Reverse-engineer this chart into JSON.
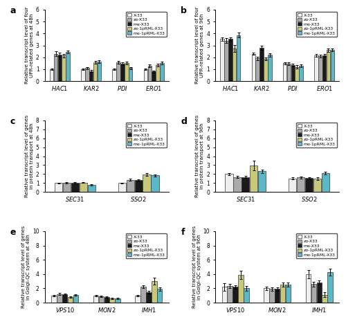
{
  "panel_a": {
    "title": "a",
    "ylabel": "Relative transcript level of four\nUPR-related genes at 48h",
    "ylim": [
      0,
      6
    ],
    "yticks": [
      0,
      1,
      2,
      3,
      4,
      5,
      6
    ],
    "groups": [
      "HAC1",
      "KAR2",
      "PDI",
      "ERO1"
    ],
    "values": [
      [
        1.0,
        2.3,
        2.2,
        2.15,
        2.45
      ],
      [
        1.0,
        1.1,
        0.85,
        1.6,
        1.65
      ],
      [
        1.0,
        1.6,
        1.45,
        1.5,
        1.1
      ],
      [
        1.0,
        1.3,
        0.8,
        1.35,
        1.5
      ]
    ],
    "errors": [
      [
        0.05,
        0.2,
        0.18,
        0.14,
        0.12
      ],
      [
        0.05,
        0.1,
        0.1,
        0.12,
        0.12
      ],
      [
        0.05,
        0.12,
        0.12,
        0.12,
        0.1
      ],
      [
        0.05,
        0.12,
        0.1,
        0.12,
        0.12
      ]
    ]
  },
  "panel_b": {
    "title": "b",
    "ylabel": "Relative transcript level of four\nUPR-related genes at 96h",
    "ylim": [
      0,
      6
    ],
    "yticks": [
      0,
      1,
      2,
      3,
      4,
      5,
      6
    ],
    "groups": [
      "HAC1",
      "KAR2",
      "PDI",
      "ERO1"
    ],
    "values": [
      [
        3.55,
        3.4,
        3.55,
        2.75,
        3.85
      ],
      [
        2.3,
        1.9,
        2.8,
        1.85,
        2.2
      ],
      [
        1.5,
        1.45,
        1.35,
        1.2,
        1.3
      ],
      [
        2.15,
        2.1,
        2.15,
        2.6,
        2.65
      ]
    ],
    "errors": [
      [
        0.15,
        0.2,
        0.15,
        0.3,
        0.2
      ],
      [
        0.1,
        0.15,
        0.18,
        0.12,
        0.15
      ],
      [
        0.1,
        0.12,
        0.1,
        0.12,
        0.1
      ],
      [
        0.1,
        0.12,
        0.12,
        0.15,
        0.12
      ]
    ]
  },
  "panel_c": {
    "title": "c",
    "ylabel": "Relative transcript level of genes\nin protein transport at 48h",
    "ylim": [
      0,
      8
    ],
    "yticks": [
      0,
      1,
      2,
      3,
      4,
      5,
      6,
      7,
      8
    ],
    "groups": [
      "SEC31",
      "SSO2"
    ],
    "values": [
      [
        1.0,
        1.05,
        1.02,
        1.05,
        0.75
      ],
      [
        1.0,
        1.35,
        1.3,
        1.95,
        1.85
      ]
    ],
    "errors": [
      [
        0.05,
        0.08,
        0.06,
        0.07,
        0.08
      ],
      [
        0.05,
        0.1,
        0.1,
        0.12,
        0.1
      ]
    ]
  },
  "panel_d": {
    "title": "d",
    "ylabel": "Relative transcript level of genes\nin protein transport at 96h",
    "ylim": [
      0,
      8
    ],
    "yticks": [
      0,
      1,
      2,
      3,
      4,
      5,
      6,
      7,
      8
    ],
    "groups": [
      "SEC31",
      "SSO2"
    ],
    "values": [
      [
        2.0,
        1.65,
        1.65,
        2.95,
        2.3
      ],
      [
        1.5,
        1.6,
        1.55,
        1.5,
        2.1
      ]
    ],
    "errors": [
      [
        0.12,
        0.12,
        0.12,
        0.55,
        0.2
      ],
      [
        0.1,
        0.12,
        0.12,
        0.15,
        0.15
      ]
    ]
  },
  "panel_e": {
    "title": "e",
    "ylabel": "Relative transcript level of genes\nin Golgi-QC system at 48h",
    "ylim": [
      0,
      10
    ],
    "yticks": [
      0,
      2,
      4,
      6,
      8,
      10
    ],
    "groups": [
      "VPS10",
      "MON2",
      "IMH1"
    ],
    "values": [
      [
        1.0,
        1.2,
        1.15,
        0.8,
        1.05
      ],
      [
        1.0,
        0.85,
        0.75,
        0.6,
        0.55
      ],
      [
        1.0,
        2.2,
        1.5,
        3.0,
        1.9
      ]
    ],
    "errors": [
      [
        0.08,
        0.12,
        0.12,
        0.1,
        0.1
      ],
      [
        0.08,
        0.1,
        0.1,
        0.1,
        0.1
      ],
      [
        0.1,
        0.2,
        0.2,
        0.5,
        0.25
      ]
    ]
  },
  "panel_f": {
    "title": "f",
    "ylabel": "Relative transcript level of genes\nin Golgi-QC system at 96h",
    "ylim": [
      0,
      10
    ],
    "yticks": [
      0,
      2,
      4,
      6,
      8,
      10
    ],
    "groups": [
      "VPS10",
      "MON2",
      "IMH1"
    ],
    "values": [
      [
        2.2,
        2.35,
        2.2,
        3.9,
        2.0
      ],
      [
        2.0,
        1.9,
        1.9,
        2.5,
        2.5
      ],
      [
        4.0,
        2.6,
        2.85,
        1.1,
        4.3
      ]
    ],
    "errors": [
      [
        0.5,
        0.3,
        0.25,
        0.6,
        0.3
      ],
      [
        0.25,
        0.2,
        0.2,
        0.3,
        0.3
      ],
      [
        0.6,
        0.35,
        0.3,
        0.35,
        0.5
      ]
    ]
  },
  "bar_colors": [
    "#eeeeee",
    "#aaaaaa",
    "#1a1a1a",
    "#c8c87a",
    "#5bb8c8"
  ],
  "legend_labels": [
    "X-33",
    "zα-X33",
    "mα-X33",
    "zα-1pRML-X33",
    "mα-1pRML-X33"
  ],
  "bar_width": 0.13,
  "edgecolor": "#333333"
}
